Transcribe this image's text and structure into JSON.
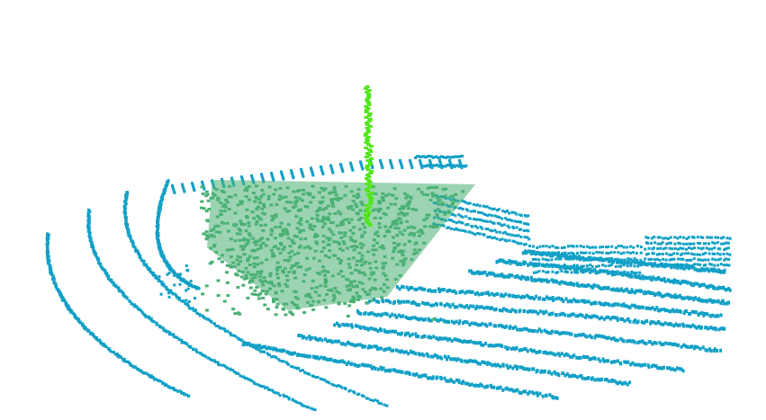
{
  "scene": {
    "background_color": "#ffffff",
    "colors": {
      "ground_points": "#12a0c6",
      "segment_points": "#4bb174",
      "pole_points": "#52e61a"
    },
    "legend": []
  }
}
